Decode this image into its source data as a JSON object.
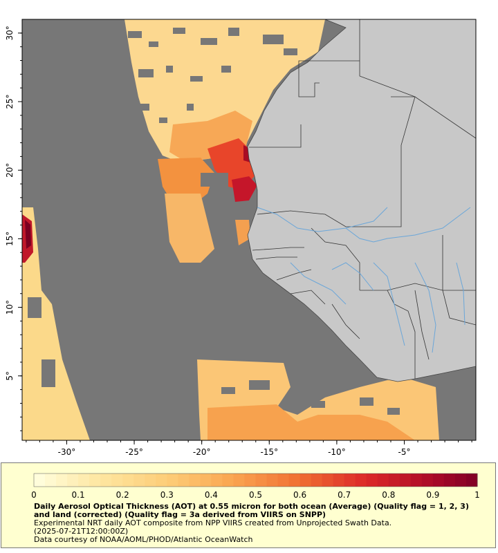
{
  "map": {
    "x_ticks": [
      "-30°",
      "-25°",
      "-20°",
      "-15°",
      "-10°",
      "-5°"
    ],
    "y_ticks": [
      "30°",
      "25°",
      "20°",
      "15°",
      "10°",
      "5°"
    ],
    "lon_range": [
      -33.3,
      0.3
    ],
    "lat_range": [
      0.3,
      31.0
    ],
    "colors": {
      "no_data": "#777777",
      "land": "#c8c8c8",
      "border": "#333333",
      "river": "#6aa6d9"
    }
  },
  "colorbar": {
    "tick_labels": [
      "0",
      "0.1",
      "0.2",
      "0.3",
      "0.4",
      "0.5",
      "0.6",
      "0.7",
      "0.8",
      "0.9",
      "1"
    ],
    "range": [
      0,
      1
    ]
  },
  "caption": {
    "title": "Daily Aerosol Optical Thickness (AOT) at 0.55 micron for both ocean (Average) (Quality flag = 1, 2, 3) and land (corrected) (Quality flag = 3a derived from VIIRS on SNPP)",
    "line1": "Experimental NRT daily AOT composite from NPP VIIRS created from Unprojected Swath Data.",
    "line2": "(2025-07-21T12:00:00Z)",
    "line3": "Data courtesy of NOAA/AOML/PHOD/Atlantic OceanWatch"
  }
}
